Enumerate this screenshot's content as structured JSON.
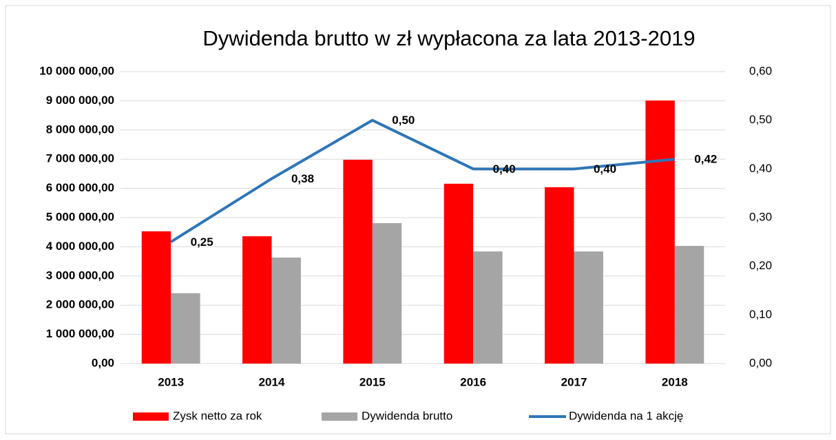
{
  "chart_data": {
    "type": "bar",
    "title": "Dywidenda brutto w zł wypłacona za lata 2013-2019",
    "categories": [
      "2013",
      "2014",
      "2015",
      "2016",
      "2017",
      "2018"
    ],
    "series": [
      {
        "name": "Zysk netto za rok",
        "type": "bar",
        "color": "#ff0000",
        "values": [
          4530000,
          4360000,
          6980000,
          6160000,
          6040000,
          9010000
        ]
      },
      {
        "name": "Dywidenda brutto",
        "type": "bar",
        "color": "#a5a5a5",
        "values": [
          2410000,
          3630000,
          4810000,
          3840000,
          3840000,
          4030000
        ]
      },
      {
        "name": "Dywidenda na 1 akcję",
        "type": "line",
        "axis": "y2",
        "color": "#2e75b6",
        "values": [
          0.25,
          0.38,
          0.5,
          0.4,
          0.4,
          0.42
        ],
        "value_labels": [
          "0,25",
          "0,38",
          "0,50",
          "0,40",
          "0,40",
          "0,42"
        ]
      }
    ],
    "ylim": [
      0,
      10000000
    ],
    "yticks": [
      {
        "value": 0,
        "label": "0,00"
      },
      {
        "value": 1000000,
        "label": "1 000 000,00"
      },
      {
        "value": 2000000,
        "label": "2 000 000,00"
      },
      {
        "value": 3000000,
        "label": "3 000 000,00"
      },
      {
        "value": 4000000,
        "label": "4 000 000,00"
      },
      {
        "value": 5000000,
        "label": "5 000 000,00"
      },
      {
        "value": 6000000,
        "label": "6 000 000,00"
      },
      {
        "value": 7000000,
        "label": "7 000 000,00"
      },
      {
        "value": 8000000,
        "label": "8 000 000,00"
      },
      {
        "value": 9000000,
        "label": "9 000 000,00"
      },
      {
        "value": 10000000,
        "label": "10 000 000,00"
      }
    ],
    "y2lim": [
      0,
      0.6
    ],
    "y2ticks": [
      {
        "value": 0,
        "label": "0,00"
      },
      {
        "value": 0.1,
        "label": "0,10"
      },
      {
        "value": 0.2,
        "label": "0,20"
      },
      {
        "value": 0.3,
        "label": "0,30"
      },
      {
        "value": 0.4,
        "label": "0,40"
      },
      {
        "value": 0.5,
        "label": "0,50"
      },
      {
        "value": 0.6,
        "label": "0,60"
      }
    ],
    "grid": true,
    "legend": "bottom"
  }
}
